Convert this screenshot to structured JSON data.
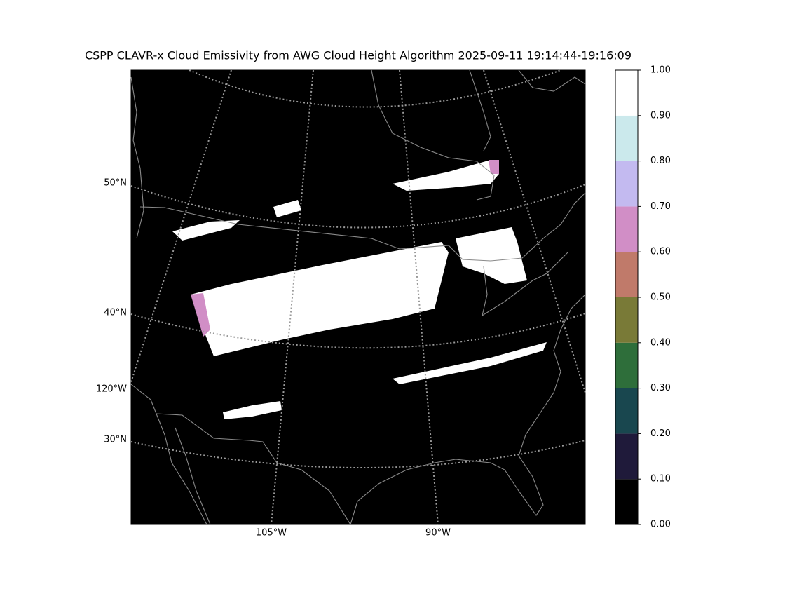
{
  "title": "CSPP CLAVR-x Cloud Emissivity from AWG Cloud Height Algorithm 2025-09-11 19:14:44-19:16:09",
  "map": {
    "lat_labels": [
      "50°N",
      "40°N",
      "30°N"
    ],
    "lon_labels_left": [
      "120°W"
    ],
    "lon_labels_bottom": [
      "105°W",
      "90°W"
    ]
  },
  "colorbar": {
    "bounds": [
      0,
      0.1,
      0.2,
      0.3,
      0.4,
      0.5,
      0.6,
      0.7,
      0.8,
      0.9,
      1
    ],
    "colors": [
      "#000000",
      "#1f1a3a",
      "#19474f",
      "#2e6e3a",
      "#797a37",
      "#c07a6a",
      "#d18ec6",
      "#c3baf0",
      "#cbe9ec",
      "#ffffff"
    ],
    "ticks": [
      {
        "value": 0,
        "label": "0.00"
      },
      {
        "value": 0.1,
        "label": "0.10"
      },
      {
        "value": 0.2,
        "label": "0.20"
      },
      {
        "value": 0.3,
        "label": "0.30"
      },
      {
        "value": 0.4,
        "label": "0.40"
      },
      {
        "value": 0.5,
        "label": "0.50"
      },
      {
        "value": 0.6,
        "label": "0.60"
      },
      {
        "value": 0.7,
        "label": "0.70"
      },
      {
        "value": 0.8,
        "label": "0.80"
      },
      {
        "value": 0.9,
        "label": "0.90"
      },
      {
        "value": 1,
        "label": "1.00"
      }
    ]
  }
}
